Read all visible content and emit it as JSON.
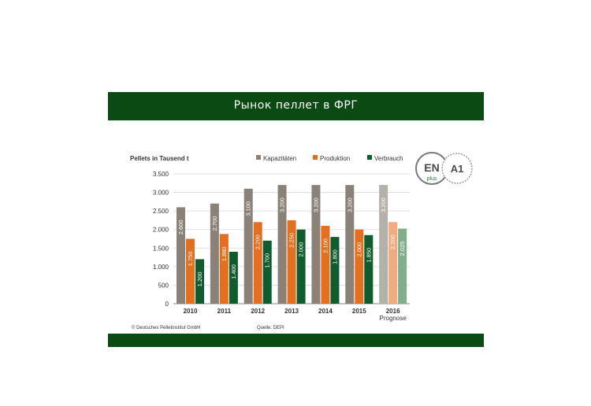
{
  "header": {
    "title": "Рынок пеллет  в ФРГ"
  },
  "logo": {
    "line1": "EN",
    "line2": "plus",
    "grade": "A1"
  },
  "footer": {
    "copyright": "© Deutsches Pelletinstitut GmbH",
    "source": "Quelle: DEPI"
  },
  "chart_data": {
    "type": "bar",
    "ylabel": "Pellets in Tausend t",
    "categories": [
      "2010",
      "2011",
      "2012",
      "2013",
      "2014",
      "2015",
      "2016"
    ],
    "category_notes": [
      "",
      "",
      "",
      "",
      "",
      "",
      "Prognose"
    ],
    "ylim": [
      0,
      3500
    ],
    "yticks": [
      0,
      500,
      1000,
      1500,
      2000,
      2500,
      3000,
      3500
    ],
    "ytick_labels": [
      "0",
      "500",
      "1.000",
      "1.500",
      "2.000",
      "2.500",
      "3.000",
      "3.500"
    ],
    "grid": true,
    "legend_position": "top",
    "series": [
      {
        "name": "Kapazitäten",
        "color": "#8a8279",
        "forecast_color": "#b5b0aa",
        "values": [
          2600,
          2700,
          3100,
          3200,
          3200,
          3200,
          3200
        ],
        "labels": [
          "2.600",
          "2.700",
          "3.100",
          "3.200",
          "3.200",
          "3.200",
          "3.200"
        ]
      },
      {
        "name": "Produktion",
        "color": "#e56f1f",
        "forecast_color": "#f2ab80",
        "values": [
          1750,
          1880,
          2200,
          2250,
          2100,
          2000,
          2200
        ],
        "labels": [
          "1.750",
          "1.880",
          "2.200",
          "2.250",
          "2.100",
          "2.000",
          "2.200"
        ]
      },
      {
        "name": "Verbrauch",
        "color": "#0f5c2e",
        "forecast_color": "#7fae8a",
        "values": [
          1200,
          1400,
          1700,
          2000,
          1800,
          1850,
          2025
        ],
        "labels": [
          "1.200",
          "1.400",
          "1.700",
          "2.000",
          "1.800",
          "1.850",
          "2.025"
        ]
      }
    ],
    "forecast_category": "2016"
  }
}
